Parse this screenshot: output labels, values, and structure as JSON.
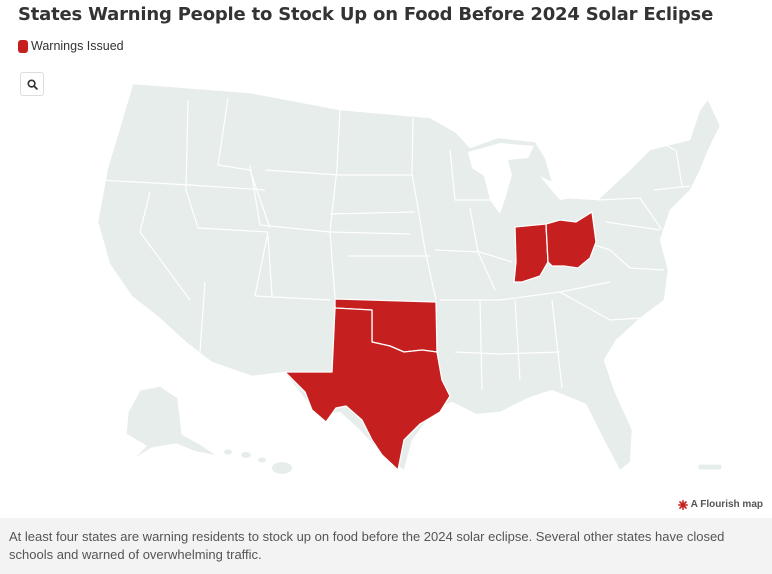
{
  "title": "States Warning People to Stock Up on Food Before 2024 Solar Eclipse",
  "legend": {
    "label": "Warnings Issued",
    "color": "#c61f1f"
  },
  "colors": {
    "default_state": "#e6edea",
    "highlight": "#c61f1f",
    "border": "#ffffff"
  },
  "controls": {
    "zoom_icon": "search-icon"
  },
  "highlighted_states": [
    "Indiana",
    "Ohio",
    "Oklahoma",
    "Texas"
  ],
  "credit": {
    "label": "A Flourish map",
    "icon": "flourish-logo-icon"
  },
  "caption": "At least four states are warning residents to stock up on food before the 2024 solar eclipse. Several other states have closed schools and warned of overwhelming traffic."
}
